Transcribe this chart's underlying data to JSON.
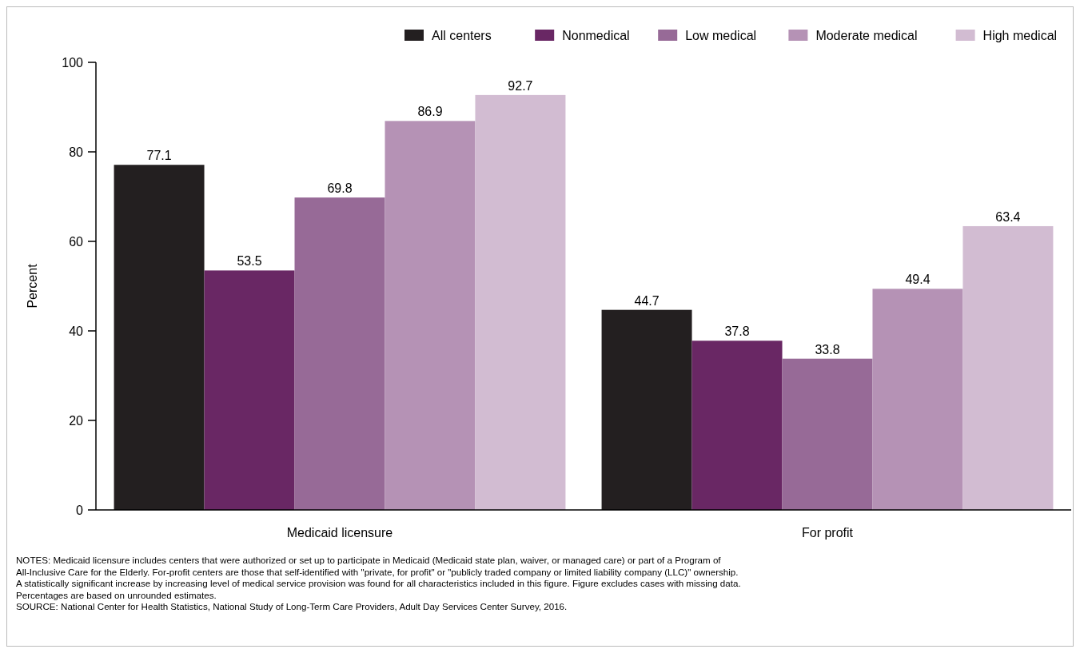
{
  "chart_data": {
    "type": "bar",
    "ylabel": "Percent",
    "categories": [
      "Medicaid licensure",
      "For profit"
    ],
    "series": [
      {
        "name": "All centers",
        "color": "#231f20",
        "values": [
          77.1,
          44.7
        ]
      },
      {
        "name": "Nonmedical",
        "color": "#692764",
        "values": [
          53.5,
          37.8
        ]
      },
      {
        "name": "Low medical",
        "color": "#976a97",
        "values": [
          69.8,
          33.8
        ]
      },
      {
        "name": "Moderate medical",
        "color": "#b592b5",
        "values": [
          86.9,
          49.4
        ]
      },
      {
        "name": "High medical",
        "color": "#d2bcd2",
        "values": [
          92.7,
          63.4
        ]
      }
    ],
    "ylim": [
      0,
      100
    ],
    "yticks": [
      0,
      20,
      40,
      60,
      80,
      100
    ],
    "grid": false,
    "legend": "top right",
    "data_labels": true,
    "annotations": [
      "NOTES: Medicaid licensure includes centers that were authorized or set up to participate in Medicaid (Medicaid state plan, waiver, or managed care) or part of a Program of",
      "All-Inclusive Care for the Elderly. For-profit centers are those that self-identified with \"private, for profit\" or \"publicly traded company or limited liability company (LLC)\" ownership.",
      "A statistically significant increase by increasing level of medical service provision was found for all characteristics included in this figure. Figure excludes cases with missing data.",
      "Percentages are based on unrounded estimates.",
      "SOURCE: National Center for Health Statistics, National Study of Long-Term Care Providers, Adult Day Services Center Survey, 2016."
    ]
  }
}
